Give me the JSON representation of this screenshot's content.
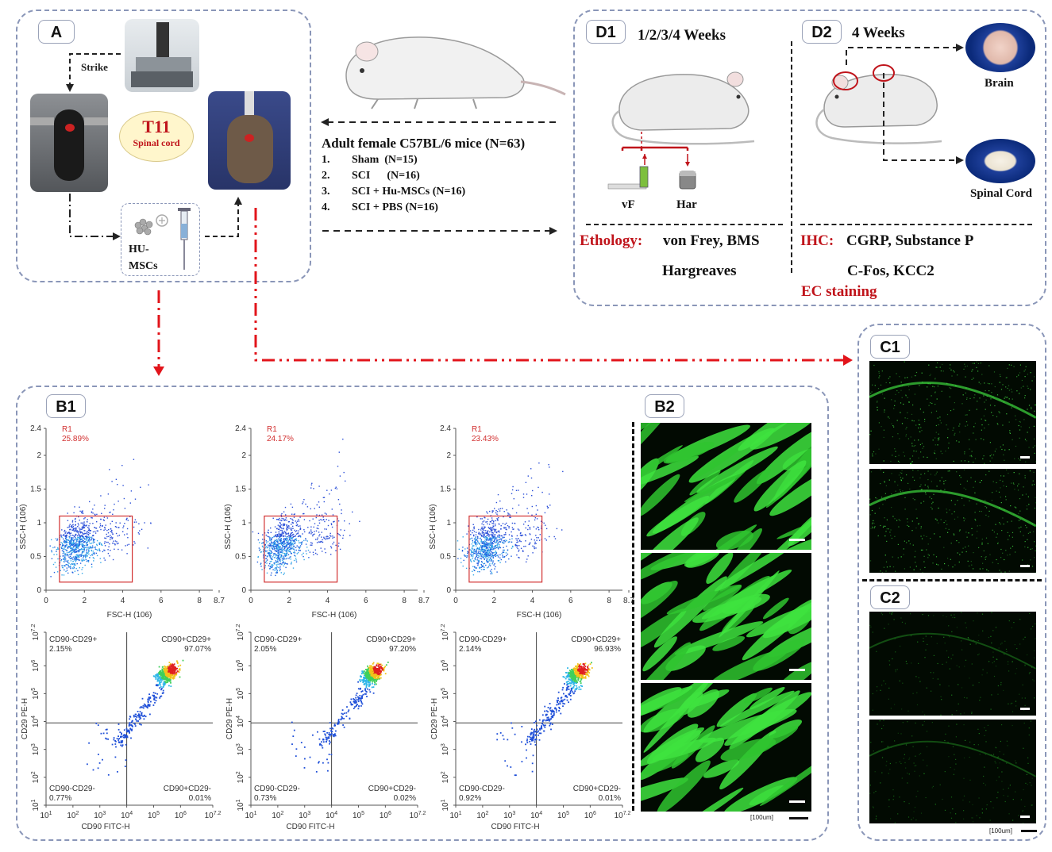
{
  "panel_labels": {
    "A": "A",
    "D1": "D1",
    "D2": "D2",
    "B1": "B1",
    "B2": "B2",
    "C1": "C1",
    "C2": "C2"
  },
  "panel_a": {
    "strike": "Strike",
    "t11_title": "T11",
    "t11_sub": "Spinal cord",
    "hu_line1": "HU-",
    "hu_line2": "MSCs"
  },
  "mice": {
    "title": "Adult female C57BL/6 mice (N=63)",
    "groups": [
      {
        "num": "1.",
        "label": "Sham  (N=15)"
      },
      {
        "num": "2.",
        "label": "SCI      (N=16)"
      },
      {
        "num": "3.",
        "label": "SCI + Hu-MSCs (N=16)"
      },
      {
        "num": "4.",
        "label": "SCI + PBS (N=16)"
      }
    ]
  },
  "panel_d1": {
    "weeks": "1/2/3/4 Weeks",
    "vf": "vF",
    "har": "Har",
    "ethology_label": "Ethology:",
    "ethology_tests": "von Frey, BMS",
    "ethology_tests2": "Hargreaves"
  },
  "panel_d2": {
    "weeks": "4 Weeks",
    "brain": "Brain",
    "spinal_cord": "Spinal Cord",
    "ihc_label": "IHC:",
    "ihc_markers": "CGRP, Substance P",
    "ihc_markers2": "C-Fos, KCC2",
    "ec": "EC staining"
  },
  "flow_top": {
    "gate_name": "R1",
    "xlabel": "FSC-H (10",
    "xlabel_exp": "6",
    "xlabel_end": ")",
    "ylabel": "SSC-H (10",
    "ylabel_exp": "6",
    "ylabel_end": ")",
    "x_ticks": [
      "0",
      "2",
      "4",
      "6",
      "8",
      "8.7"
    ],
    "y_ticks": [
      "0",
      "0.5",
      "1",
      "1.5",
      "2",
      "2.4"
    ]
  },
  "flow_bottom": {
    "xlabel": "CD90 FITC-H",
    "ylabel": "CD29 PE-H",
    "x_ticks": [
      "1",
      "2",
      "3",
      "4",
      "5",
      "6",
      "7.2"
    ],
    "y_ticks": [
      "1",
      "2",
      "3",
      "4",
      "5",
      "6",
      "7.2"
    ],
    "q_ul": "CD90-CD29+",
    "q_ur": "CD90+CD29+",
    "q_ll": "CD90-CD29-",
    "q_lr": "CD90+CD29-"
  },
  "chart_data": [
    {
      "type": "scatter",
      "title": "",
      "xlabel": "FSC-H (10^6)",
      "ylabel": "SSC-H (10^6)",
      "xlim": [
        0,
        8.7
      ],
      "ylim": [
        0,
        2.4
      ],
      "gate": "R1",
      "gate_percent": "25.89%"
    },
    {
      "type": "scatter",
      "title": "",
      "xlabel": "FSC-H (10^6)",
      "ylabel": "SSC-H (10^6)",
      "xlim": [
        0,
        8.7
      ],
      "ylim": [
        0,
        2.4
      ],
      "gate": "R1",
      "gate_percent": "24.17%"
    },
    {
      "type": "scatter",
      "title": "",
      "xlabel": "FSC-H (10^6)",
      "ylabel": "SSC-H (10^6)",
      "xlim": [
        0,
        8.7
      ],
      "ylim": [
        0,
        2.4
      ],
      "gate": "R1",
      "gate_percent": "23.43%"
    },
    {
      "type": "scatter",
      "title": "",
      "xlabel": "CD90 FITC-H",
      "ylabel": "CD29 PE-H",
      "scale": "log",
      "quadrants": {
        "CD90-CD29+": "2.15%",
        "CD90+CD29+": "97.07%",
        "CD90-CD29-": "0.77%",
        "CD90+CD29-": "0.01%"
      }
    },
    {
      "type": "scatter",
      "title": "",
      "xlabel": "CD90 FITC-H",
      "ylabel": "CD29 PE-H",
      "scale": "log",
      "quadrants": {
        "CD90-CD29+": "2.05%",
        "CD90+CD29+": "97.20%",
        "CD90-CD29-": "0.73%",
        "CD90+CD29-": "0.02%"
      }
    },
    {
      "type": "scatter",
      "title": "",
      "xlabel": "CD90 FITC-H",
      "ylabel": "CD29 PE-H",
      "scale": "log",
      "quadrants": {
        "CD90-CD29+": "2.14%",
        "CD90+CD29+": "96.93%",
        "CD90-CD29-": "0.92%",
        "CD90+CD29-": "0.01%"
      }
    }
  ],
  "flow_plots_top": [
    {
      "pct": "25.89%"
    },
    {
      "pct": "24.17%"
    },
    {
      "pct": "23.43%"
    }
  ],
  "flow_plots_bottom": [
    {
      "ul": "2.15%",
      "ur": "97.07%",
      "ll": "0.77%",
      "lr": "0.01%"
    },
    {
      "ul": "2.05%",
      "ur": "97.20%",
      "ll": "0.73%",
      "lr": "0.02%"
    },
    {
      "ul": "2.14%",
      "ur": "96.93%",
      "ll": "0.92%",
      "lr": "0.01%"
    }
  ],
  "scalebars": {
    "b2": "100um",
    "c": "100um"
  },
  "colors": {
    "red": "#c0141b",
    "dash": "#8a96b8",
    "scatter": "#1f5fe0",
    "gate": "#d23030",
    "fluor": "#3ee33e"
  }
}
